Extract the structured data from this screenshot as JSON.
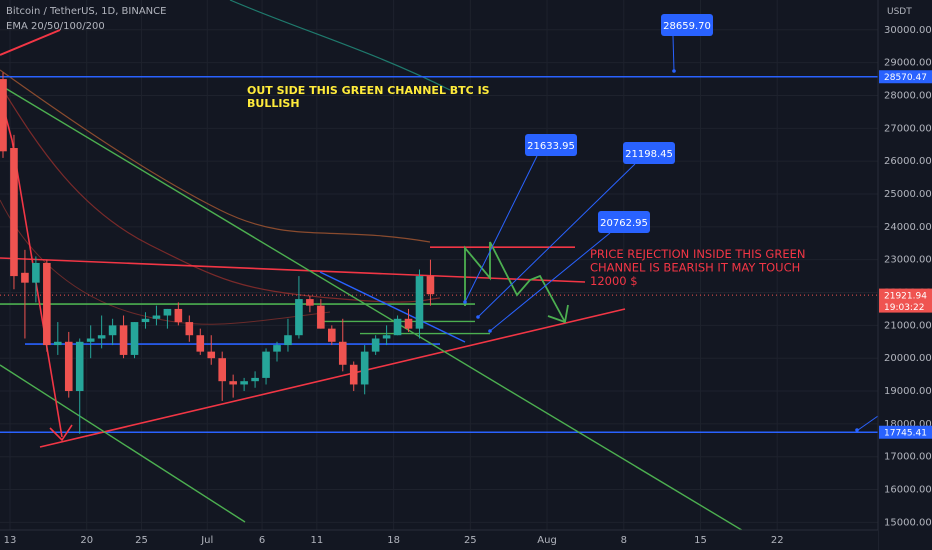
{
  "header": {
    "symbol": "Bitcoin / TetherUS, 1D, BINANCE",
    "indicator": "EMA 20/50/100/200"
  },
  "colors": {
    "background": "#131722",
    "up": "#26a69a",
    "down": "#ef5350",
    "channel": "#4caf50",
    "level": "#2962ff",
    "trend": "#f23645",
    "note_bullish": "#ffeb3b",
    "note_bearish": "#f23645"
  },
  "chart_data": {
    "type": "candlestick",
    "y_unit": "USDT",
    "ylim": [
      15000,
      30500
    ],
    "x_tick_labels": [
      "13",
      "20",
      "25",
      "Jul",
      "6",
      "11",
      "18",
      "25",
      "Aug",
      "8",
      "15",
      "22"
    ],
    "candles": [
      {
        "o": 28500,
        "h": 28700,
        "l": 26100,
        "c": 26300
      },
      {
        "o": 26400,
        "h": 26800,
        "l": 22100,
        "c": 22500
      },
      {
        "o": 22600,
        "h": 23300,
        "l": 20600,
        "c": 22300
      },
      {
        "o": 22300,
        "h": 23100,
        "l": 21700,
        "c": 22900
      },
      {
        "o": 22900,
        "h": 23000,
        "l": 20200,
        "c": 20400
      },
      {
        "o": 20400,
        "h": 21100,
        "l": 20100,
        "c": 20500
      },
      {
        "o": 20500,
        "h": 20800,
        "l": 18800,
        "c": 19000
      },
      {
        "o": 19000,
        "h": 20600,
        "l": 17700,
        "c": 20500
      },
      {
        "o": 20500,
        "h": 21000,
        "l": 20000,
        "c": 20600
      },
      {
        "o": 20600,
        "h": 21300,
        "l": 20300,
        "c": 20700
      },
      {
        "o": 20700,
        "h": 21200,
        "l": 20400,
        "c": 21000
      },
      {
        "o": 21000,
        "h": 21300,
        "l": 20000,
        "c": 20100
      },
      {
        "o": 20100,
        "h": 21100,
        "l": 20000,
        "c": 21100
      },
      {
        "o": 21100,
        "h": 21400,
        "l": 20900,
        "c": 21200
      },
      {
        "o": 21200,
        "h": 21600,
        "l": 21000,
        "c": 21300
      },
      {
        "o": 21300,
        "h": 21500,
        "l": 20900,
        "c": 21500
      },
      {
        "o": 21500,
        "h": 21700,
        "l": 21000,
        "c": 21100
      },
      {
        "o": 21100,
        "h": 21300,
        "l": 20500,
        "c": 20700
      },
      {
        "o": 20700,
        "h": 20900,
        "l": 20100,
        "c": 20200
      },
      {
        "o": 20200,
        "h": 20700,
        "l": 19800,
        "c": 20000
      },
      {
        "o": 20000,
        "h": 20200,
        "l": 18700,
        "c": 19300
      },
      {
        "o": 19300,
        "h": 19500,
        "l": 18800,
        "c": 19200
      },
      {
        "o": 19200,
        "h": 19400,
        "l": 19000,
        "c": 19300
      },
      {
        "o": 19300,
        "h": 19600,
        "l": 19100,
        "c": 19400
      },
      {
        "o": 19400,
        "h": 20300,
        "l": 19200,
        "c": 20200
      },
      {
        "o": 20200,
        "h": 20500,
        "l": 19900,
        "c": 20400
      },
      {
        "o": 20400,
        "h": 21200,
        "l": 20200,
        "c": 20700
      },
      {
        "o": 20700,
        "h": 22500,
        "l": 20600,
        "c": 21800
      },
      {
        "o": 21800,
        "h": 21900,
        "l": 21400,
        "c": 21600
      },
      {
        "o": 21600,
        "h": 21800,
        "l": 20900,
        "c": 20900
      },
      {
        "o": 20900,
        "h": 21000,
        "l": 20400,
        "c": 20500
      },
      {
        "o": 20500,
        "h": 21200,
        "l": 19600,
        "c": 19800
      },
      {
        "o": 19800,
        "h": 19900,
        "l": 19000,
        "c": 19200
      },
      {
        "o": 19200,
        "h": 20400,
        "l": 18900,
        "c": 20200
      },
      {
        "o": 20200,
        "h": 20700,
        "l": 20100,
        "c": 20600
      },
      {
        "o": 20600,
        "h": 21000,
        "l": 20400,
        "c": 20700
      },
      {
        "o": 20700,
        "h": 21300,
        "l": 20700,
        "c": 21200
      },
      {
        "o": 21200,
        "h": 21500,
        "l": 20800,
        "c": 20900
      },
      {
        "o": 20900,
        "h": 22700,
        "l": 20600,
        "c": 22500
      },
      {
        "o": 22500,
        "h": 23000,
        "l": 21600,
        "c": 21950
      }
    ],
    "y_tick_labels": [
      "30000.00",
      "29000.00",
      "28000.00",
      "27000.00",
      "26000.00",
      "25000.00",
      "24000.00",
      "23000.00",
      "22000.00",
      "21000.00",
      "20000.00",
      "19000.00",
      "18000.00",
      "17000.00",
      "16000.00",
      "15000.00"
    ],
    "price_tags": [
      {
        "value": 28570.47,
        "label": "28570.47",
        "color": "#2962ff"
      },
      {
        "value": 21921.94,
        "label": "21921.94",
        "sub": "19:03:22",
        "color": "#ef5350"
      },
      {
        "value": 17745.41,
        "label": "17745.41",
        "color": "#2962ff"
      }
    ],
    "target_labels": [
      "28659.70",
      "21633.95",
      "21198.45",
      "20762.95"
    ],
    "annotations": [
      {
        "text": [
          "OUT SIDE THIS GREEN CHANNEL BTC IS",
          "BULLISH"
        ],
        "color": "#ffeb3b"
      },
      {
        "text": [
          "PRICE REJECTION INSIDE THIS GREEN",
          "CHANNEL IS BEARISH IT MAY TOUCH",
          "12000 $"
        ],
        "color": "#f23645"
      }
    ]
  }
}
